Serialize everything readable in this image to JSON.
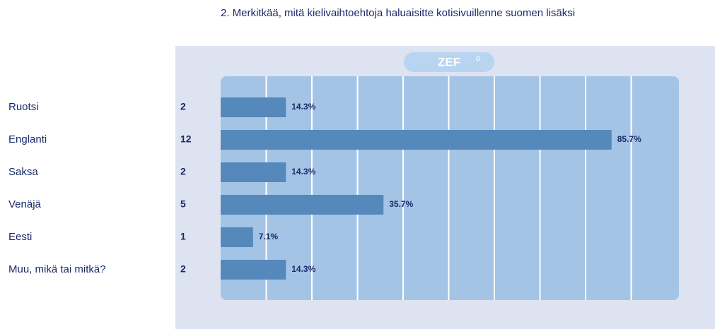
{
  "chart_data": {
    "type": "bar",
    "orientation": "horizontal",
    "title": "2. Merkitkää, mitä kielivaihtoehtoja haluaisitte kotisivuillenne suomen lisäksi",
    "logo": "ZEF",
    "categories": [
      "Ruotsi",
      "Englanti",
      "Saksa",
      "Venäjä",
      "Eesti",
      "Muu, mikä tai mitkä?"
    ],
    "counts": [
      2,
      12,
      2,
      5,
      1,
      2
    ],
    "values": [
      14.3,
      85.7,
      14.3,
      35.7,
      7.1,
      14.3
    ],
    "value_labels": [
      "14.3%",
      "85.7%",
      "14.3%",
      "35.7%",
      "7.1%",
      "14.3%"
    ],
    "color": "#5588bb",
    "xlim": [
      0,
      100
    ],
    "xticks": [
      0,
      10,
      20,
      30,
      40,
      50,
      60,
      70,
      80,
      90,
      100
    ],
    "grid": true
  }
}
